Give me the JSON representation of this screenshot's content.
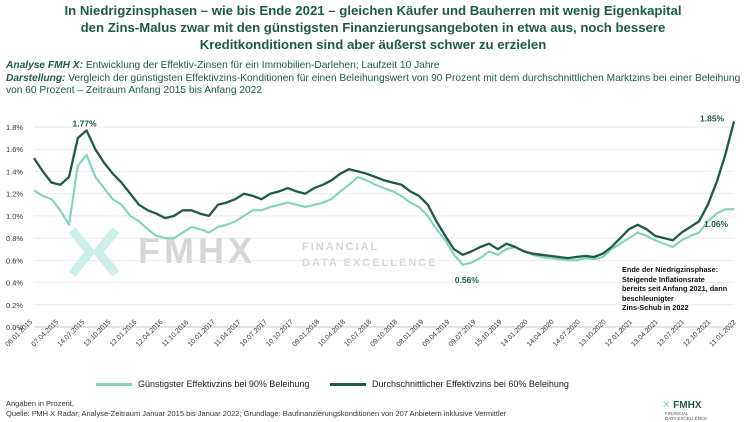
{
  "header": {
    "title_lines": [
      "In Niedrigzinsphasen – wie bis Ende 2021 – gleichen Käufer und Bauherren mit wenig Eigenkapital",
      "den Zins-Malus zwar mit den günstigsten Finanzierungsangeboten in etwa aus, noch bessere",
      "Kreditkonditionen sind aber äußerst schwer zu erzielen"
    ],
    "analyse_label": "Analyse FMH X:",
    "analyse_text": " Entwicklung der Effektiv-Zinsen für ein Immobilien-Darlehen; Laufzeit 10 Jahre",
    "darstellung_label": "Darstellung:",
    "darstellung_text": " Vergleich der günstigsten Effektivzins-Konditionen für einen Beleihungswert von 90 Prozent mit dem durchschnittlichen Marktzins bei einer Beleihung von 60 Prozent – Zeitraum Anfang 2015 bis Anfang 2022"
  },
  "chart_data": {
    "type": "line",
    "ylim": [
      0,
      1.8
    ],
    "y_ticks": [
      "0.0%",
      "0.2%",
      "0.4%",
      "0.6%",
      "0.8%",
      "1.0%",
      "1.2%",
      "1.4%",
      "1.6%",
      "1.8%"
    ],
    "x_tick_labels": [
      "06.01.2015",
      "07.04.2015",
      "14.07.2015",
      "13.10.2015",
      "12.01.2016",
      "12.04.2016",
      "11.10.2016",
      "10.01.2017",
      "11.04.2017",
      "10.07.2017",
      "10.10.2017",
      "09.01.2018",
      "10.04.2018",
      "10.07.2018",
      "09.10.2018",
      "08.01.2019",
      "09.04.2019",
      "09.07.2019",
      "15.10.2019",
      "14.01.2020",
      "14.04.2020",
      "14.07.2020",
      "13.10.2020",
      "12.01.2021",
      "13.04.2021",
      "13.07.2021",
      "12.10.2021",
      "11.01.2022"
    ],
    "grid": true,
    "series": [
      {
        "name": "Günstigster Effektivzins bei 90% Beleihung",
        "color": "#7fd3c3",
        "values": [
          1.23,
          1.18,
          1.15,
          1.05,
          0.92,
          1.45,
          1.55,
          1.35,
          1.25,
          1.15,
          1.1,
          1.0,
          0.95,
          0.88,
          0.82,
          0.8,
          0.8,
          0.85,
          0.9,
          0.88,
          0.85,
          0.9,
          0.92,
          0.95,
          1.0,
          1.05,
          1.05,
          1.08,
          1.1,
          1.12,
          1.1,
          1.08,
          1.1,
          1.12,
          1.15,
          1.22,
          1.28,
          1.35,
          1.32,
          1.28,
          1.25,
          1.22,
          1.18,
          1.12,
          1.08,
          1.0,
          0.88,
          0.78,
          0.65,
          0.56,
          0.58,
          0.62,
          0.68,
          0.65,
          0.7,
          0.72,
          0.68,
          0.65,
          0.63,
          0.62,
          0.61,
          0.6,
          0.6,
          0.62,
          0.61,
          0.63,
          0.7,
          0.75,
          0.8,
          0.85,
          0.82,
          0.78,
          0.75,
          0.72,
          0.78,
          0.82,
          0.85,
          0.95,
          1.02,
          1.06,
          1.06
        ]
      },
      {
        "name": "Durchschnittlicher Effektivzins bei 60% Beleihung",
        "color": "#1e5a46",
        "values": [
          1.52,
          1.4,
          1.3,
          1.28,
          1.35,
          1.7,
          1.77,
          1.6,
          1.48,
          1.38,
          1.3,
          1.2,
          1.1,
          1.05,
          1.02,
          0.98,
          1.0,
          1.05,
          1.05,
          1.02,
          1.0,
          1.1,
          1.12,
          1.15,
          1.2,
          1.18,
          1.15,
          1.2,
          1.22,
          1.25,
          1.22,
          1.2,
          1.25,
          1.28,
          1.32,
          1.38,
          1.42,
          1.4,
          1.38,
          1.35,
          1.32,
          1.3,
          1.28,
          1.22,
          1.18,
          1.1,
          0.95,
          0.82,
          0.7,
          0.65,
          0.68,
          0.72,
          0.75,
          0.7,
          0.75,
          0.72,
          0.68,
          0.66,
          0.65,
          0.64,
          0.63,
          0.62,
          0.63,
          0.64,
          0.63,
          0.66,
          0.72,
          0.8,
          0.88,
          0.92,
          0.88,
          0.82,
          0.8,
          0.78,
          0.85,
          0.9,
          0.95,
          1.1,
          1.3,
          1.55,
          1.85
        ]
      }
    ],
    "annotations": [
      {
        "text": "1.77%",
        "series": 1,
        "index": 6
      },
      {
        "text": "0.56%",
        "series": 0,
        "index": 49
      },
      {
        "text": "1.85%",
        "series": 1,
        "index": 80
      },
      {
        "text": "1.06%",
        "series": 0,
        "index": 80
      }
    ],
    "callout_lines": [
      "Ende der Niedrigzinsphase:",
      "Steigende Inflationsrate",
      "bereits seit Anfang 2021, dann",
      "beschleunigter",
      "Zins-Schub in 2022"
    ]
  },
  "watermark": {
    "logo_text": "FMHX",
    "tagline_1": "FINANCIAL",
    "tagline_2": "DATA EXCELLENCE"
  },
  "footer": {
    "line1": "Angaben in Prozent,",
    "line2": "Quelle: FMH X Radar; Analyse-Zeitraum Januar 2015 bis Januar 2022; Grundlage: Baufinanzierungskonditionen von 207 Anbietern inklusive Vermittler"
  },
  "small_logo": {
    "text": "FMHX",
    "sub_1": "FINANCIAL",
    "sub_2": "DATA EXCELLENCE"
  }
}
